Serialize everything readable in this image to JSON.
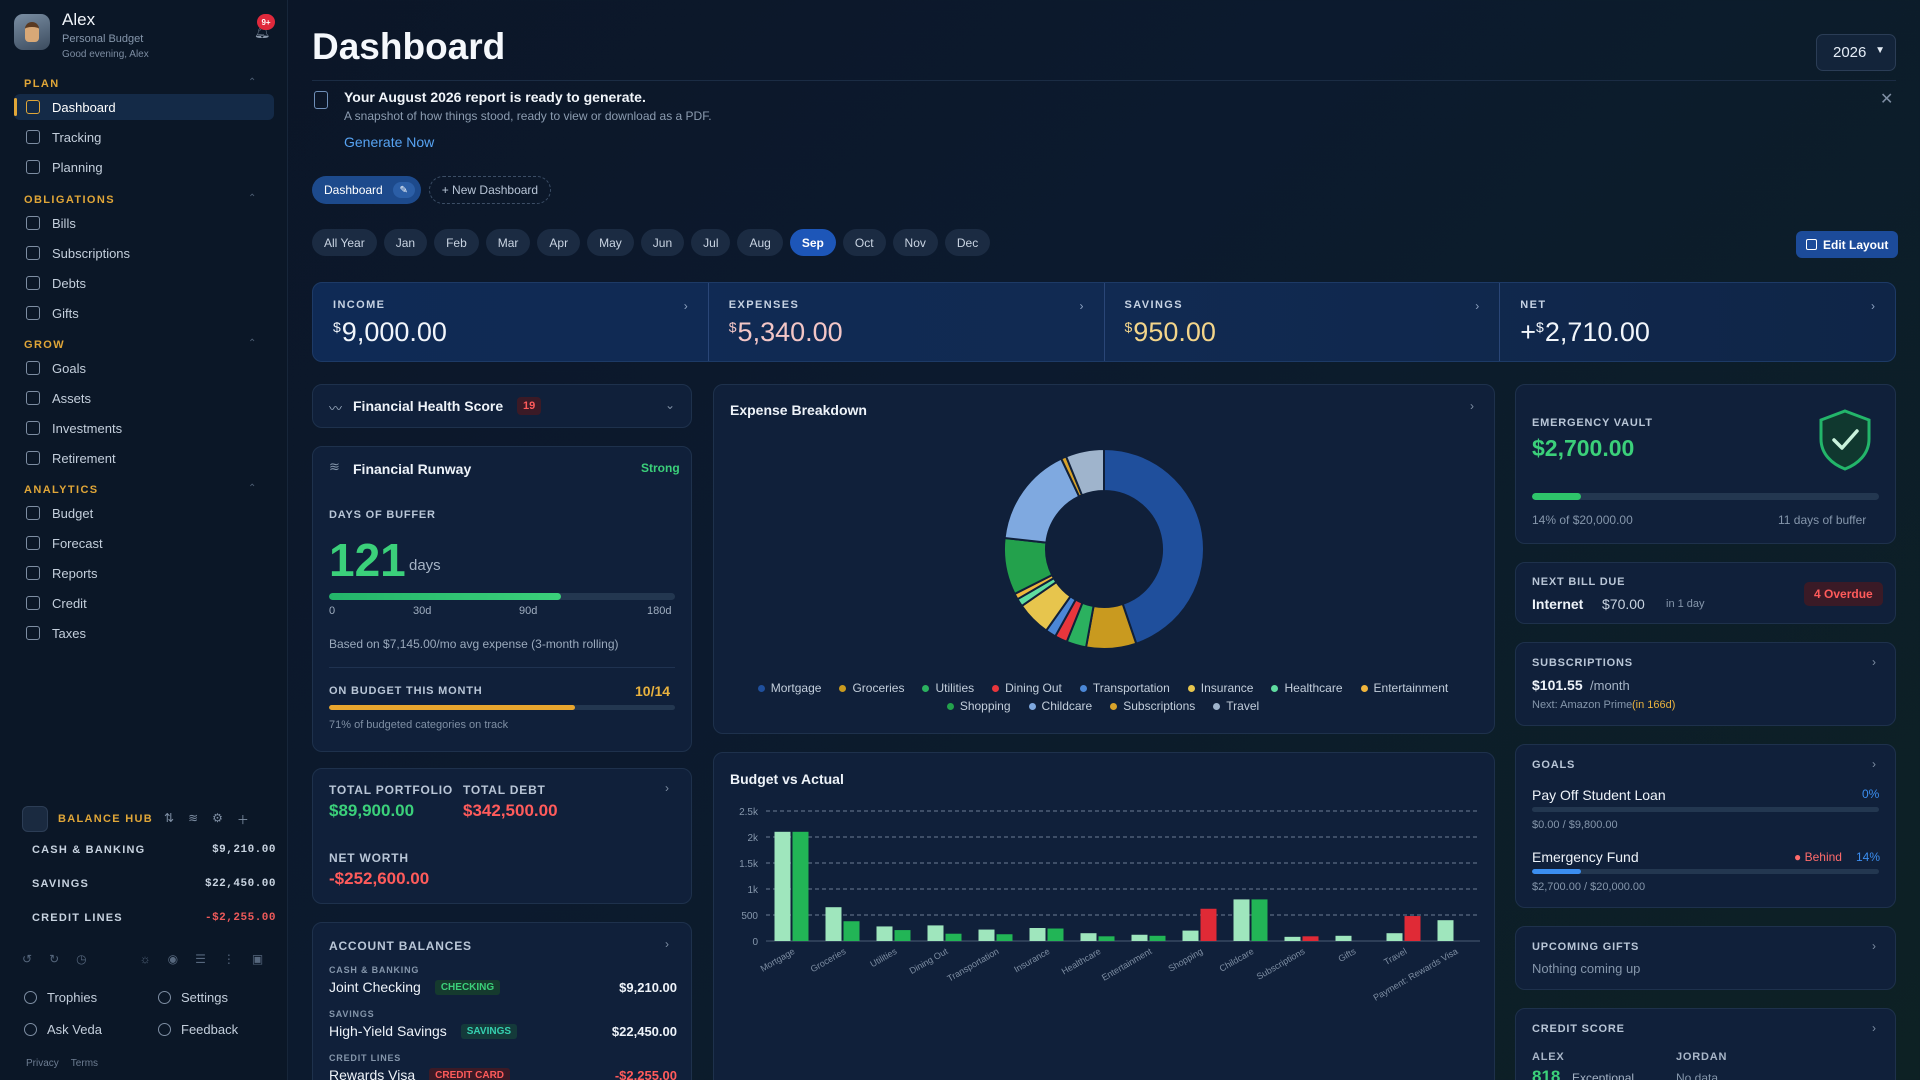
{
  "user": {
    "name": "Alex",
    "subtitle": "Personal Budget",
    "greeting": "Good evening, Alex",
    "notifications": "9+"
  },
  "sidebar": {
    "sections": [
      {
        "title": "PLAN",
        "items": [
          "Dashboard",
          "Tracking",
          "Planning"
        ]
      },
      {
        "title": "OBLIGATIONS",
        "items": [
          "Bills",
          "Subscriptions",
          "Debts",
          "Gifts"
        ]
      },
      {
        "title": "GROW",
        "items": [
          "Goals",
          "Assets",
          "Investments",
          "Retirement"
        ]
      },
      {
        "title": "ANALYTICS",
        "items": [
          "Budget",
          "Forecast",
          "Reports",
          "Credit",
          "Taxes"
        ]
      }
    ],
    "active_item": "Dashboard",
    "balance_hub": {
      "title": "BALANCE HUB",
      "rows": [
        {
          "label": "CASH & BANKING",
          "value": "$9,210.00"
        },
        {
          "label": "SAVINGS",
          "value": "$22,450.00"
        },
        {
          "label": "CREDIT LINES",
          "value": "-$2,255.00"
        }
      ]
    },
    "footer": {
      "trophies": "Trophies",
      "settings": "Settings",
      "ask": "Ask Veda",
      "feedback": "Feedback",
      "privacy": "Privacy",
      "terms": "Terms"
    }
  },
  "header": {
    "title": "Dashboard",
    "year": "2026"
  },
  "notice": {
    "title": "Your August 2026 report is ready to generate.",
    "subtitle": "A snapshot of how things stood, ready to view or download as a PDF.",
    "cta": "Generate Now"
  },
  "dashboard_tabs": {
    "active": "Dashboard",
    "new": "+ New Dashboard"
  },
  "months": [
    "All Year",
    "Jan",
    "Feb",
    "Mar",
    "Apr",
    "May",
    "Jun",
    "Jul",
    "Aug",
    "Sep",
    "Oct",
    "Nov",
    "Dec"
  ],
  "active_month": "Sep",
  "edit_layout": "Edit Layout",
  "summary": [
    {
      "label": "INCOME",
      "currency": "$",
      "prefix": "",
      "value": "9,000.00",
      "color": "#f2f6fb"
    },
    {
      "label": "EXPENSES",
      "currency": "$",
      "prefix": "",
      "value": "5,340.00",
      "color": "#f3c6c6"
    },
    {
      "label": "SAVINGS",
      "currency": "$",
      "prefix": "",
      "value": "950.00",
      "color": "#f3d58a"
    },
    {
      "label": "NET",
      "currency": "$",
      "prefix": "+",
      "value": "2,710.00",
      "color": "#f2f6fb"
    }
  ],
  "health": {
    "title": "Financial Health Score",
    "score": "19"
  },
  "runway": {
    "title": "Financial Runway",
    "status": "Strong",
    "buffer_label": "DAYS OF BUFFER",
    "days": "121",
    "unit": "days",
    "buffer_fraction": 0.67,
    "ticks": [
      "0",
      "30d",
      "90d",
      "180d"
    ],
    "note": "Based on $7,145.00/mo avg expense (3-month rolling)",
    "budget_label": "ON BUDGET THIS MONTH",
    "budget_count": "10/14",
    "budget_fraction": 0.71,
    "budget_note": "71% of budgeted categories on track"
  },
  "portfolio": {
    "portfolio_label": "TOTAL PORTFOLIO",
    "portfolio": "$89,900.00",
    "debt_label": "TOTAL DEBT",
    "debt": "$342,500.00",
    "net_label": "NET WORTH",
    "net": "-$252,600.00"
  },
  "accounts": {
    "title": "ACCOUNT BALANCES",
    "groups": [
      {
        "label": "CASH & BANKING",
        "name": "Joint Checking",
        "tag": "CHECKING",
        "amount": "$9,210.00"
      },
      {
        "label": "SAVINGS",
        "name": "High-Yield Savings",
        "tag": "SAVINGS",
        "amount": "$22,450.00"
      },
      {
        "label": "CREDIT LINES",
        "name": "Rewards Visa",
        "tag": "CREDIT CARD",
        "amount": "-$2,255.00"
      }
    ]
  },
  "expense_breakdown": {
    "title": "Expense Breakdown",
    "chart_data": {
      "type": "pie",
      "categories": [
        "Mortgage",
        "Groceries",
        "Utilities",
        "Dining Out",
        "Transportation",
        "Insurance",
        "Healthcare",
        "Entertainment",
        "Shopping",
        "Childcare",
        "Subscriptions",
        "Travel"
      ],
      "values": [
        2100,
        380,
        150,
        95,
        80,
        260,
        60,
        45,
        430,
        760,
        40,
        290
      ],
      "colors": [
        "#1f4f9c",
        "#c99a1f",
        "#2bb15f",
        "#e8363c",
        "#4b87d6",
        "#e7c54d",
        "#5fdca0",
        "#f0b53c",
        "#23a14c",
        "#7fa9e0",
        "#d7a22a",
        "#9fb4cc"
      ]
    }
  },
  "budget_vs_actual": {
    "title": "Budget vs Actual",
    "chart_data": {
      "type": "bar",
      "categories": [
        "Mortgage",
        "Groceries",
        "Utilities",
        "Dining Out",
        "Transportation",
        "Insurance",
        "Healthcare",
        "Entertainment",
        "Shopping",
        "Childcare",
        "Subscriptions",
        "Gifts",
        "Travel",
        "Payment: Rewards Visa"
      ],
      "series": [
        {
          "name": "",
          "values": [
            2100,
            650,
            280,
            300,
            220,
            250,
            150,
            120,
            200,
            800,
            80,
            100,
            150,
            400
          ]
        },
        {
          "name": "",
          "values": [
            2100,
            380,
            210,
            140,
            130,
            240,
            90,
            100,
            620,
            800,
            90,
            0,
            480,
            0
          ]
        }
      ],
      "ylim": [
        0,
        2500
      ],
      "yticks": [
        "0",
        "500",
        "1k",
        "1.5k",
        "2k",
        "2.5k"
      ]
    }
  },
  "vault": {
    "label": "EMERGENCY VAULT",
    "amount": "$2,700.00",
    "fraction": 0.14,
    "of": "14% of $20,000.00",
    "days": "11 days of buffer"
  },
  "next_bill": {
    "label": "NEXT BILL DUE",
    "name": "Internet",
    "amount": "$70.00",
    "when": "in 1 day",
    "overdue": "4 Overdue"
  },
  "subscriptions": {
    "label": "SUBSCRIPTIONS",
    "amount": "$101.55",
    "per": "/month",
    "next": "Next: Amazon Prime",
    "next_when": "(in 166d)"
  },
  "goals": {
    "label": "GOALS",
    "items": [
      {
        "name": "Pay Off Student Loan",
        "pct": "0%",
        "fraction": 0.0,
        "progress": "$0.00 / $9,800.00",
        "status": ""
      },
      {
        "name": "Emergency Fund",
        "pct": "14%",
        "fraction": 0.14,
        "progress": "$2,700.00 / $20,000.00",
        "status": "Behind"
      }
    ]
  },
  "gifts": {
    "label": "UPCOMING GIFTS",
    "empty": "Nothing coming up"
  },
  "credit": {
    "label": "CREDIT SCORE",
    "p1": "ALEX",
    "p1_score": "818",
    "p1_rating": "Exceptional",
    "p2": "JORDAN",
    "p2_value": "No data"
  }
}
